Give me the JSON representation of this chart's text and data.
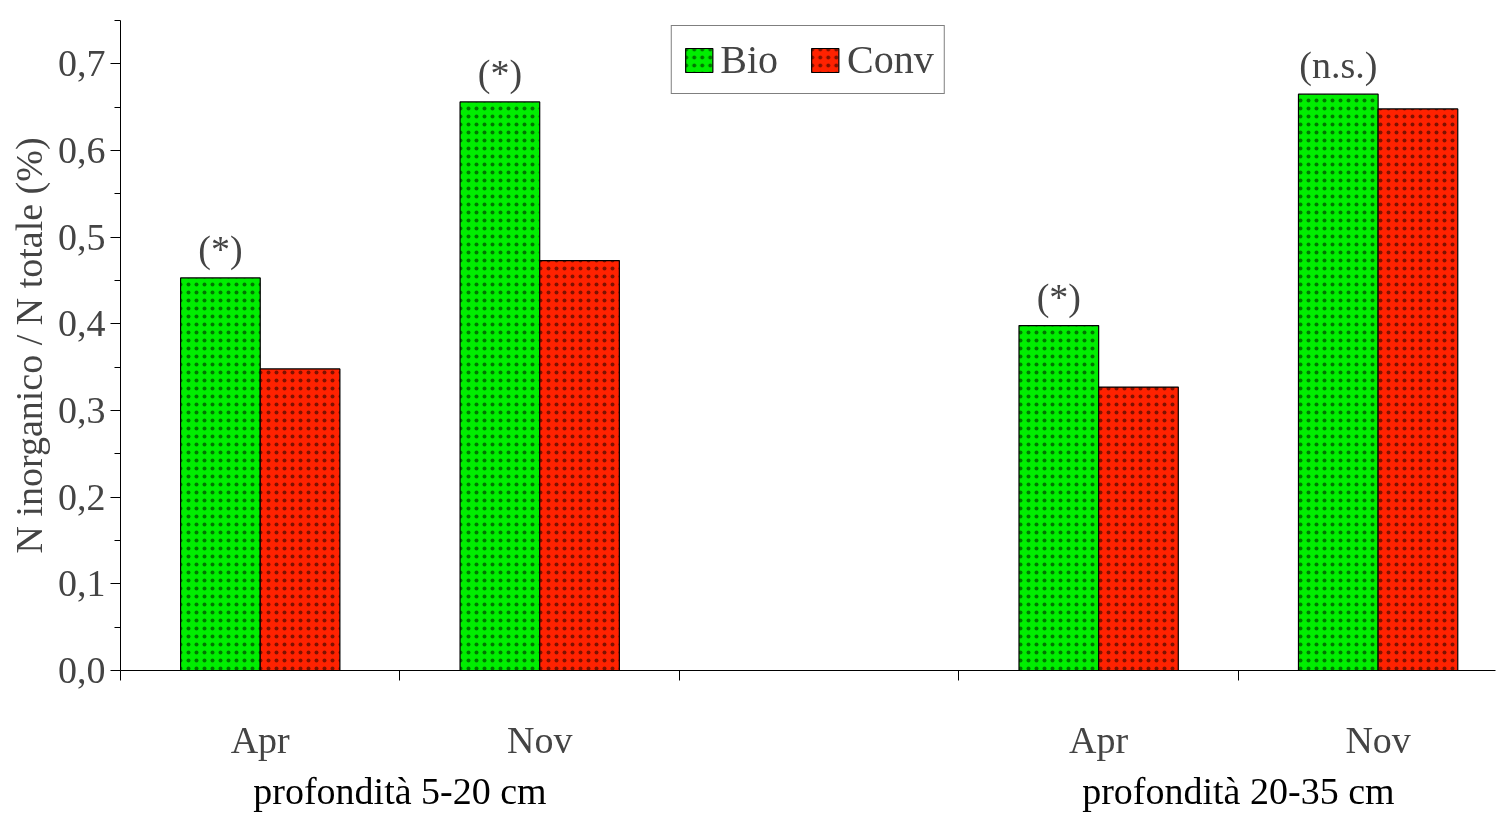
{
  "chart_data": {
    "type": "bar",
    "ylabel": "N inorganico / N totale (%)",
    "categories": [
      "Apr",
      "Nov",
      null,
      "Apr",
      "Nov"
    ],
    "series": [
      {
        "name": "Bio",
        "color": "#00ee00",
        "values": [
          0.453,
          0.656,
          null,
          0.398,
          0.665
        ]
      },
      {
        "name": "Conv",
        "color": "#ff2200",
        "values": [
          0.348,
          0.473,
          null,
          0.327,
          0.648
        ]
      }
    ],
    "ylim": [
      0,
      0.75
    ],
    "yticks": [
      {
        "value": 0,
        "label": "0,0"
      },
      {
        "value": 0.05,
        "label": null
      },
      {
        "value": 0.1,
        "label": "0,1"
      },
      {
        "value": 0.15,
        "label": null
      },
      {
        "value": 0.2,
        "label": "0,2"
      },
      {
        "value": 0.25,
        "label": null
      },
      {
        "value": 0.3,
        "label": "0,3"
      },
      {
        "value": 0.35,
        "label": null
      },
      {
        "value": 0.4,
        "label": "0,4"
      },
      {
        "value": 0.45,
        "label": null
      },
      {
        "value": 0.5,
        "label": "0,5"
      },
      {
        "value": 0.55,
        "label": null
      },
      {
        "value": 0.6,
        "label": "0,6"
      },
      {
        "value": 0.65,
        "label": null
      },
      {
        "value": 0.7,
        "label": "0,7"
      },
      {
        "value": 0.75,
        "label": null
      }
    ],
    "annotations": [
      "(*)",
      "(*)",
      "(*)",
      "(n.s.)",
      "profondità 5-20 cm",
      "profondità 20-35 cm"
    ],
    "grid": false,
    "legend": "top"
  }
}
